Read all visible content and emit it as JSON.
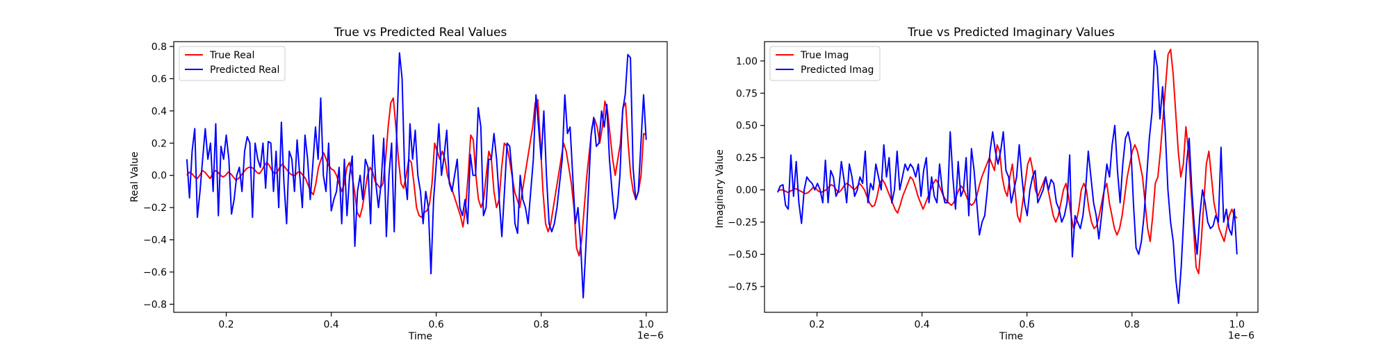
{
  "chart_data": [
    {
      "type": "line",
      "title": "True vs Predicted Real Values",
      "xlabel": "Time",
      "ylabel": "Real Value",
      "x_offset_label": "1e−6",
      "xlim": [
        0.1,
        1.04
      ],
      "ylim": [
        -0.85,
        0.83
      ],
      "x_ticks": [
        0.2,
        0.4,
        0.6,
        0.8,
        1.0
      ],
      "x_tick_labels": [
        "0.2",
        "0.4",
        "0.6",
        "0.8",
        "1.0"
      ],
      "y_ticks": [
        -0.8,
        -0.6,
        -0.4,
        -0.2,
        0.0,
        0.2,
        0.4,
        0.6,
        0.8
      ],
      "y_tick_labels": [
        "−0.8",
        "−0.6",
        "−0.4",
        "−0.2",
        "0.0",
        "0.2",
        "0.4",
        "0.6",
        "0.8"
      ],
      "grid": false,
      "legend_position": "top-left",
      "x_start": 0.125,
      "x_end": 1.0,
      "series": [
        {
          "name": "True Real",
          "color": "#ff0000",
          "values": [
            0.0,
            0.02,
            0.01,
            -0.01,
            -0.02,
            0.0,
            0.03,
            0.02,
            0.0,
            -0.02,
            0.01,
            0.03,
            0.02,
            0.0,
            -0.01,
            0.0,
            0.02,
            0.01,
            -0.01,
            -0.03,
            -0.02,
            0.0,
            0.02,
            0.04,
            0.05,
            0.05,
            0.04,
            0.02,
            0.01,
            0.03,
            0.06,
            0.08,
            0.06,
            0.03,
            0.01,
            0.02,
            0.05,
            0.07,
            0.05,
            0.03,
            0.01,
            0.0,
            0.0,
            0.02,
            0.02,
            0.0,
            -0.02,
            -0.06,
            -0.1,
            -0.12,
            -0.05,
            0.05,
            0.1,
            0.14,
            0.1,
            0.06,
            0.04,
            0.03,
            0.0,
            -0.05,
            -0.1,
            -0.05,
            0.05,
            0.08,
            0.0,
            -0.1,
            -0.23,
            -0.26,
            -0.2,
            -0.1,
            0.0,
            0.05,
            0.02,
            -0.04,
            -0.06,
            -0.08,
            -0.05,
            0.1,
            0.3,
            0.45,
            0.48,
            0.3,
            0.1,
            -0.05,
            -0.08,
            0.0,
            0.1,
            0.08,
            -0.05,
            -0.2,
            -0.25,
            -0.26,
            -0.23,
            -0.22,
            -0.18,
            -0.05,
            0.2,
            0.15,
            0.1,
            0.15,
            0.1,
            0.0,
            -0.05,
            -0.1,
            -0.15,
            -0.2,
            -0.25,
            -0.32,
            -0.2,
            0.0,
            0.25,
            0.22,
            0.0,
            -0.15,
            -0.2,
            -0.15,
            0.0,
            0.15,
            0.1,
            -0.1,
            -0.2,
            -0.15,
            0.05,
            0.2,
            0.18,
            0.1,
            0.0,
            -0.1,
            -0.15,
            -0.2,
            -0.1,
            0.0,
            0.1,
            0.2,
            0.3,
            0.45,
            0.47,
            0.2,
            -0.1,
            -0.3,
            -0.35,
            -0.3,
            -0.2,
            -0.1,
            0.0,
            0.1,
            0.2,
            0.15,
            0.05,
            -0.05,
            -0.2,
            -0.45,
            -0.5,
            -0.4,
            -0.2,
            0.0,
            0.15,
            0.3,
            0.35,
            0.3,
            0.2,
            0.3,
            0.46,
            0.4,
            0.25,
            0.1,
            0.0,
            0.1,
            0.2,
            0.42,
            0.45,
            0.2,
            0.0,
            -0.1,
            -0.15,
            -0.1,
            0.0,
            0.26,
            0.25
          ]
        },
        {
          "name": "Predicted Real",
          "color": "#0000ff",
          "values": [
            0.1,
            -0.14,
            0.15,
            0.29,
            -0.26,
            -0.1,
            0.1,
            0.29,
            0.1,
            0.2,
            -0.1,
            0.32,
            -0.25,
            0.18,
            0.1,
            0.25,
            0.1,
            -0.24,
            -0.15,
            0.0,
            0.05,
            -0.1,
            0.15,
            0.24,
            0.2,
            -0.26,
            0.2,
            0.1,
            0.05,
            0.2,
            -0.08,
            0.21,
            0.2,
            -0.1,
            0.15,
            -0.2,
            0.33,
            -0.05,
            -0.3,
            0.15,
            0.1,
            -0.1,
            0.22,
            0.0,
            -0.2,
            0.25,
            0.1,
            -0.15,
            0.07,
            0.3,
            0.1,
            0.48,
            0.0,
            -0.1,
            0.2,
            -0.22,
            -0.15,
            -0.1,
            0.05,
            -0.3,
            0.1,
            -0.25,
            0.0,
            0.12,
            -0.44,
            -0.1,
            0.0,
            -0.15,
            0.1,
            0.05,
            -0.3,
            0.25,
            -0.05,
            -0.2,
            -0.05,
            0.23,
            -0.38,
            0.0,
            0.2,
            -0.35,
            0.3,
            0.76,
            0.6,
            0.0,
            -0.15,
            0.32,
            0.1,
            0.28,
            0.0,
            -0.1,
            -0.3,
            -0.1,
            -0.2,
            -0.61,
            -0.15,
            0.07,
            0.32,
            0.0,
            0.12,
            0.28,
            -0.05,
            -0.1,
            0.0,
            0.1,
            -0.2,
            -0.25,
            -0.15,
            -0.3,
            0.13,
            0.0,
            0.0,
            0.42,
            0.3,
            -0.25,
            -0.2,
            0.1,
            0.1,
            0.26,
            0.1,
            -0.15,
            -0.38,
            -0.1,
            0.2,
            0.18,
            0.0,
            -0.3,
            -0.36,
            0.0,
            -0.15,
            -0.2,
            -0.3,
            -0.1,
            0.1,
            0.5,
            0.3,
            0.1,
            0.4,
            0.0,
            -0.3,
            -0.35,
            -0.3,
            -0.2,
            -0.05,
            0.1,
            0.5,
            0.26,
            0.3,
            0.0,
            -0.3,
            -0.2,
            -0.42,
            -0.76,
            -0.45,
            -0.1,
            0.25,
            0.36,
            0.18,
            0.2,
            0.4,
            0.3,
            0.44,
            0.1,
            -0.1,
            -0.27,
            -0.2,
            0.0,
            0.4,
            0.5,
            0.75,
            0.73,
            0.05,
            -0.15,
            -0.1,
            0.2,
            0.5,
            0.22
          ]
        }
      ]
    },
    {
      "type": "line",
      "title": "True vs Predicted Imaginary Values",
      "xlabel": "Time",
      "ylabel": "Imaginary Value",
      "x_offset_label": "1e−6",
      "xlim": [
        0.1,
        1.04
      ],
      "ylim": [
        -0.95,
        1.15
      ],
      "x_ticks": [
        0.2,
        0.4,
        0.6,
        0.8,
        1.0
      ],
      "x_tick_labels": [
        "0.2",
        "0.4",
        "0.6",
        "0.8",
        "1.0"
      ],
      "y_ticks": [
        -0.75,
        -0.5,
        -0.25,
        0.0,
        0.25,
        0.5,
        0.75,
        1.0
      ],
      "y_tick_labels": [
        "−0.75",
        "−0.50",
        "−0.25",
        "0.00",
        "0.25",
        "0.50",
        "0.75",
        "1.00"
      ],
      "grid": false,
      "legend_position": "top-left",
      "x_start": 0.125,
      "x_end": 1.0,
      "series": [
        {
          "name": "True Imag",
          "color": "#ff0000",
          "values": [
            -0.01,
            0.0,
            0.0,
            -0.01,
            -0.02,
            -0.01,
            0.0,
            0.01,
            0.0,
            -0.01,
            -0.02,
            -0.03,
            -0.02,
            0.0,
            0.02,
            0.01,
            -0.01,
            -0.02,
            -0.01,
            0.0,
            0.02,
            0.04,
            0.03,
            0.0,
            -0.02,
            0.0,
            0.03,
            0.05,
            0.04,
            0.02,
            0.0,
            0.02,
            0.05,
            0.03,
            0.0,
            -0.05,
            -0.1,
            -0.13,
            -0.12,
            -0.05,
            0.05,
            0.08,
            0.05,
            0.0,
            -0.05,
            -0.1,
            -0.15,
            -0.18,
            -0.12,
            -0.05,
            0.0,
            0.05,
            0.1,
            0.08,
            0.02,
            -0.05,
            -0.1,
            -0.15,
            -0.1,
            -0.05,
            0.0,
            0.05,
            0.08,
            0.05,
            0.0,
            -0.05,
            -0.08,
            -0.1,
            -0.12,
            -0.1,
            -0.05,
            0.0,
            0.03,
            0.0,
            -0.05,
            -0.1,
            -0.12,
            -0.1,
            -0.05,
            0.03,
            0.1,
            0.15,
            0.2,
            0.25,
            0.2,
            0.15,
            0.35,
            0.3,
            0.1,
            0.0,
            -0.05,
            0.1,
            0.2,
            0.0,
            -0.2,
            -0.25,
            -0.1,
            0.05,
            0.2,
            0.25,
            0.15,
            0.0,
            -0.05,
            0.0,
            0.05,
            0.1,
            0.0,
            -0.1,
            -0.2,
            -0.25,
            -0.2,
            -0.1,
            0.0,
            0.05,
            -0.05,
            -0.2,
            -0.3,
            -0.25,
            -0.15,
            0.0,
            0.05,
            0.0,
            -0.15,
            -0.25,
            -0.3,
            -0.28,
            -0.2,
            -0.1,
            0.0,
            0.05,
            -0.1,
            -0.2,
            -0.3,
            -0.35,
            -0.3,
            -0.2,
            -0.05,
            0.1,
            0.2,
            0.3,
            0.35,
            0.3,
            0.2,
            0.1,
            -0.1,
            -0.3,
            -0.4,
            -0.2,
            0.05,
            0.1,
            0.3,
            0.55,
            0.8,
            1.05,
            1.09,
            0.9,
            0.6,
            0.3,
            0.1,
            0.2,
            0.49,
            0.3,
            0.0,
            -0.3,
            -0.6,
            -0.65,
            -0.4,
            -0.1,
            0.2,
            0.3,
            0.1,
            -0.1,
            -0.2,
            -0.3,
            -0.35,
            -0.4,
            -0.3,
            -0.2,
            -0.15,
            -0.2,
            -0.22
          ]
        },
        {
          "name": "Predicted Imag",
          "color": "#0000ff",
          "values": [
            -0.02,
            0.03,
            0.04,
            -0.12,
            -0.15,
            0.27,
            -0.05,
            0.22,
            -0.1,
            -0.26,
            0.0,
            0.1,
            0.07,
            0.05,
            0.0,
            0.05,
            0.0,
            -0.1,
            0.23,
            -0.1,
            0.15,
            0.1,
            -0.05,
            0.0,
            0.22,
            0.08,
            -0.1,
            0.2,
            0.1,
            -0.05,
            0.0,
            0.1,
            0.05,
            0.3,
            -0.1,
            0.05,
            0.0,
            0.2,
            0.1,
            0.0,
            0.35,
            0.1,
            0.25,
            -0.1,
            0.0,
            0.3,
            0.0,
            0.1,
            0.2,
            0.15,
            0.2,
            0.17,
            0.1,
            0.2,
            -0.05,
            0.15,
            0.25,
            -0.1,
            0.1,
            -0.05,
            -0.1,
            0.2,
            0.0,
            -0.1,
            -0.1,
            0.45,
            0.1,
            -0.15,
            0.22,
            -0.05,
            0.0,
            0.25,
            -0.2,
            0.32,
            0.15,
            -0.1,
            -0.35,
            -0.25,
            -0.2,
            0.0,
            0.3,
            0.45,
            0.3,
            0.2,
            0.3,
            0.45,
            0.15,
            0.1,
            -0.1,
            0.0,
            0.1,
            0.35,
            0.1,
            -0.1,
            -0.2,
            0.0,
            0.1,
            0.15,
            -0.1,
            -0.05,
            0.0,
            0.1,
            0.0,
            0.08,
            0.05,
            -0.1,
            -0.15,
            -0.25,
            -0.2,
            -0.1,
            0.27,
            -0.52,
            -0.2,
            -0.25,
            -0.3,
            -0.2,
            0.0,
            0.3,
            0.1,
            -0.1,
            -0.2,
            -0.38,
            -0.2,
            0.0,
            0.2,
            0.1,
            0.35,
            0.5,
            0.15,
            -0.1,
            0.2,
            0.4,
            0.45,
            0.35,
            -0.1,
            -0.45,
            -0.5,
            -0.4,
            -0.2,
            0.1,
            0.4,
            0.6,
            1.08,
            0.95,
            0.55,
            0.8,
            0.45,
            0.0,
            -0.25,
            -0.4,
            -0.7,
            -0.88,
            -0.6,
            -0.2,
            0.2,
            0.4,
            0.0,
            -0.3,
            -0.5,
            -0.2,
            0.0,
            -0.1,
            -0.25,
            -0.3,
            -0.28,
            -0.2,
            -0.25,
            0.33,
            -0.25,
            -0.15,
            -0.3,
            -0.35,
            -0.15,
            -0.5
          ]
        }
      ]
    }
  ]
}
